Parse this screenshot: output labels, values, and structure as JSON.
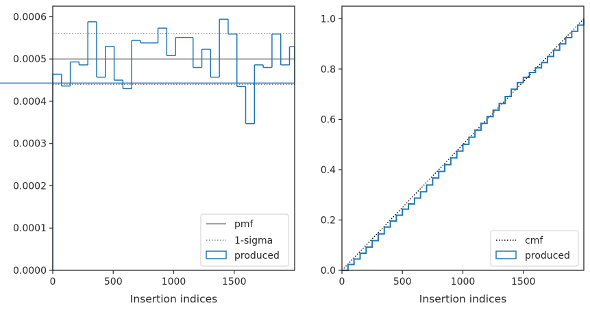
{
  "chart_data": [
    {
      "type": "histogram-step",
      "xlabel": "Insertion indices",
      "xlim": [
        0,
        2000
      ],
      "ylim": [
        0,
        0.000625
      ],
      "x_ticks": [
        0,
        500,
        1000,
        1500
      ],
      "x_tick_labels": [
        "0",
        "500",
        "1000",
        "1500"
      ],
      "y_ticks": [
        0,
        0.0001,
        0.0002,
        0.0003,
        0.0004,
        0.0005,
        0.0006
      ],
      "y_tick_labels": [
        "0.0000",
        "0.0001",
        "0.0002",
        "0.0003",
        "0.0004",
        "0.0005",
        "0.0006"
      ],
      "reference_lines": [
        {
          "name": "pmf",
          "y": 0.0005,
          "style": "solid",
          "color": "#808080"
        },
        {
          "name": "1-sigma",
          "y": 0.00056,
          "style": "dotted",
          "color": "#808080"
        },
        {
          "name": "1-sigma",
          "y": 0.00044,
          "style": "dotted",
          "color": "#808080"
        }
      ],
      "series": [
        {
          "name": "produced",
          "color": "#1f77b4",
          "bin_edges": [
            0,
            72.5,
            145,
            217.5,
            290,
            362.5,
            435,
            507.5,
            580,
            652.5,
            725,
            797.5,
            870,
            942.5,
            1015,
            1087.5,
            1160,
            1232.5,
            1305,
            1377.5,
            1450,
            1522.5,
            1595,
            1667.5,
            1740,
            1812.5,
            1885,
            1957.5,
            2000
          ],
          "values": [
            0.000464,
            0.000436,
            0.000493,
            0.000486,
            0.000588,
            0.000457,
            0.00053,
            0.00045,
            0.00043,
            0.000544,
            0.000538,
            0.000538,
            0.000573,
            0.000508,
            0.000551,
            0.000551,
            0.00048,
            0.000523,
            0.000457,
            0.000594,
            0.000559,
            0.000435,
            0.000347,
            0.000486,
            0.00048,
            0.000559,
            0.000486,
            0.000529,
            0.000443
          ]
        }
      ],
      "legend": {
        "position": "lower-right",
        "entries": [
          "pmf",
          "1-sigma",
          "produced"
        ]
      },
      "grid": false
    },
    {
      "type": "line",
      "xlabel": "Insertion indices",
      "xlim": [
        0,
        2000
      ],
      "ylim": [
        0,
        1.05
      ],
      "x_ticks": [
        0,
        500,
        1000,
        1500
      ],
      "x_tick_labels": [
        "0",
        "500",
        "1000",
        "1500"
      ],
      "y_ticks": [
        0,
        0.2,
        0.4,
        0.6,
        0.8,
        1.0
      ],
      "y_tick_labels": [
        "0.0",
        "0.2",
        "0.4",
        "0.6",
        "0.8",
        "1.0"
      ],
      "series": [
        {
          "name": "cmf",
          "style": "dotted",
          "color": "#000000",
          "x": [
            0,
            2000
          ],
          "y": [
            0,
            1.0
          ]
        },
        {
          "name": "produced",
          "style": "step",
          "color": "#1f77b4",
          "x": [
            0,
            50,
            100,
            150,
            200,
            250,
            300,
            350,
            400,
            450,
            500,
            550,
            600,
            650,
            700,
            750,
            800,
            850,
            900,
            950,
            1000,
            1050,
            1100,
            1150,
            1200,
            1250,
            1300,
            1350,
            1400,
            1450,
            1500,
            1550,
            1600,
            1650,
            1700,
            1750,
            1800,
            1850,
            1900,
            1950,
            2000
          ],
          "y": [
            0,
            0.023,
            0.045,
            0.068,
            0.092,
            0.118,
            0.145,
            0.172,
            0.196,
            0.219,
            0.243,
            0.264,
            0.287,
            0.312,
            0.339,
            0.367,
            0.393,
            0.42,
            0.447,
            0.474,
            0.501,
            0.529,
            0.557,
            0.584,
            0.611,
            0.637,
            0.663,
            0.691,
            0.72,
            0.746,
            0.767,
            0.786,
            0.805,
            0.826,
            0.85,
            0.875,
            0.9,
            0.925,
            0.95,
            0.975,
            1.0
          ]
        }
      ],
      "legend": {
        "position": "lower-right",
        "entries": [
          "cmf",
          "produced"
        ]
      },
      "grid": false
    }
  ]
}
